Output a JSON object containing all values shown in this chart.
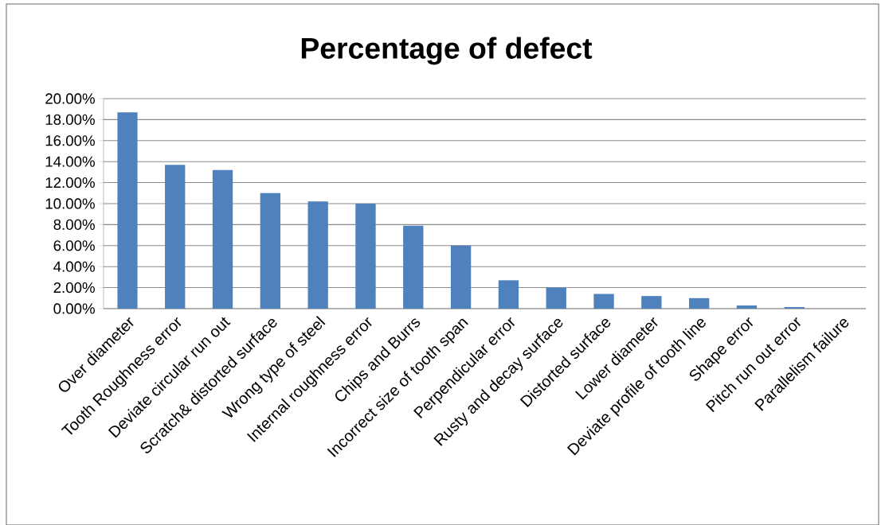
{
  "chart_data": {
    "type": "bar",
    "title": "Percentage of defect",
    "categories": [
      "Over diameter",
      "Tooth Roughness error",
      "Deviate circular run out",
      "Scratch& distorted surface",
      "Wrong type of steel",
      "Internal roughness error",
      "Chips and Burrs",
      "Incorrect size of tooth span",
      "Perpendicular error",
      "Rusty and decay surface",
      "Distorted surface",
      "Lower diameter",
      "Deviate profile of tooth line",
      "Shape  error",
      "Pitch run out error",
      "Parallelism failure"
    ],
    "values": [
      18.7,
      13.7,
      13.2,
      11.0,
      10.2,
      10.0,
      7.9,
      6.0,
      2.7,
      2.0,
      1.4,
      1.2,
      1.0,
      0.3,
      0.15,
      0
    ],
    "color": "#4f81bd",
    "ylim": [
      0,
      20
    ],
    "yticks": [
      {
        "value": 0,
        "label": "0.00%"
      },
      {
        "value": 2,
        "label": "2.00%"
      },
      {
        "value": 4,
        "label": "4.00%"
      },
      {
        "value": 6,
        "label": "6.00%"
      },
      {
        "value": 8,
        "label": "8.00%"
      },
      {
        "value": 10,
        "label": "10.00%"
      },
      {
        "value": 12,
        "label": "12.00%"
      },
      {
        "value": 14,
        "label": "14.00%"
      },
      {
        "value": 16,
        "label": "16.00%"
      },
      {
        "value": 18,
        "label": "18.00%"
      },
      {
        "value": 20,
        "label": "20.00%"
      }
    ],
    "grid": "y"
  }
}
